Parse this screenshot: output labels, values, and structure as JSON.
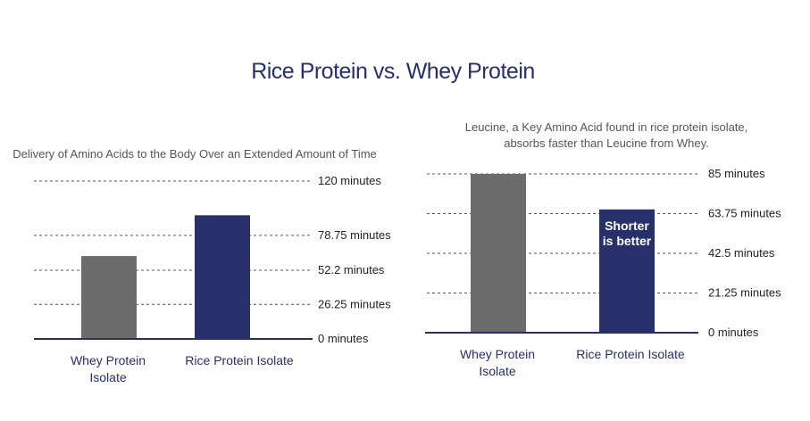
{
  "title": "Rice Protein vs. Whey Protein",
  "colors": {
    "title": "#27306b",
    "whey": "#6b6b6b",
    "rice": "#27306b",
    "axis": "#27306b",
    "grid": "#555555"
  },
  "chart_data": [
    {
      "type": "bar",
      "title": "Delivery of Amino Acids to the Body Over an Extended Amount of Time",
      "categories": [
        [
          "Whey Protein",
          "Isolate"
        ],
        [
          "Rice Protein Isolate"
        ]
      ],
      "values": [
        63,
        94
      ],
      "ylim": [
        0,
        120
      ],
      "ticks": [
        0,
        26.25,
        52.2,
        78.75,
        120
      ],
      "tick_labels": [
        "0 minutes",
        "26.25 minutes",
        "52.2 minutes",
        "78.75 minutes",
        "120 minutes"
      ],
      "xlabel": "",
      "ylabel": ""
    },
    {
      "type": "bar",
      "title": [
        "Leucine, a Key Amino Acid found in rice protein isolate,",
        "absorbs faster than Leucine from Whey."
      ],
      "categories": [
        [
          "Whey Protein",
          "Isolate"
        ],
        [
          "Rice Protein Isolate"
        ]
      ],
      "values": [
        85,
        66
      ],
      "ylim": [
        0,
        85
      ],
      "ticks": [
        0,
        21.25,
        42.5,
        63.75,
        85
      ],
      "tick_labels": [
        "0 minutes",
        "21.25 minutes",
        "42.5 minutes",
        "63.75 minutes",
        "85 minutes"
      ],
      "annotation": [
        "Shorter",
        "is better"
      ],
      "xlabel": "",
      "ylabel": ""
    }
  ]
}
